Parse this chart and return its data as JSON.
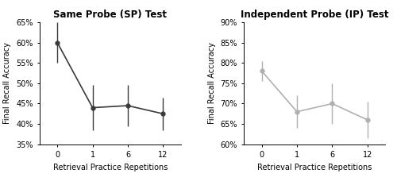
{
  "sp": {
    "title": "Same Probe (SP) Test",
    "x": [
      0,
      1,
      6,
      12
    ],
    "y": [
      60.0,
      44.0,
      44.5,
      42.5
    ],
    "yerr": [
      5.0,
      5.5,
      5.0,
      4.0
    ],
    "ylim": [
      35,
      65
    ],
    "yticks": [
      35,
      40,
      45,
      50,
      55,
      60,
      65
    ],
    "color": "#3a3a3a",
    "ylabel": "Final Recall Accuracy"
  },
  "ip": {
    "title": "Independent Probe (IP) Test",
    "x": [
      0,
      1,
      6,
      12
    ],
    "y": [
      78.0,
      68.0,
      70.0,
      66.0
    ],
    "yerr": [
      2.5,
      4.0,
      5.0,
      4.5
    ],
    "ylim": [
      60,
      90
    ],
    "yticks": [
      60,
      65,
      70,
      75,
      80,
      85,
      90
    ],
    "color": "#b0b0b0",
    "ylabel": "Final Recall Accuracy"
  },
  "xlabel": "Retrieval Practice Repetitions",
  "bg_color": "#ffffff",
  "title_fontsize": 8.5,
  "label_fontsize": 7.0,
  "tick_fontsize": 7.0
}
